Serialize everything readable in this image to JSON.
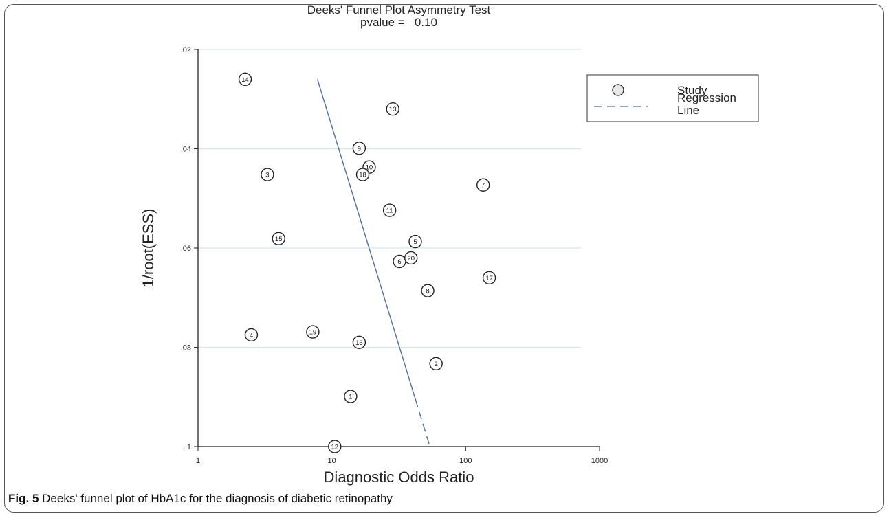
{
  "chart_data": {
    "type": "scatter",
    "title": "Deeks' Funnel Plot Asymmetry Test",
    "subtitle": "pvalue =   0.10",
    "xlabel": "Diagnostic Odds Ratio",
    "ylabel": "1/root(ESS)",
    "x_scale": "log",
    "xlim": [
      1,
      1000
    ],
    "ylim": [
      0.02,
      0.1
    ],
    "y_reversed": true,
    "x_ticks": [
      "1",
      "10",
      "100",
      "1000"
    ],
    "y_ticks": [
      ".02",
      ".04",
      ".06",
      ".08",
      ".1"
    ],
    "grid": "horizontal",
    "legend_position": "top-right",
    "legend": [
      {
        "label": "Study",
        "marker": "circle"
      },
      {
        "label": "Regression\nLine",
        "marker": "dashed-line"
      }
    ],
    "series": [
      {
        "name": "Study",
        "points": [
          {
            "label": "1",
            "x": 13.8,
            "y": 0.0899
          },
          {
            "label": "2",
            "x": 60.0,
            "y": 0.0833
          },
          {
            "label": "3",
            "x": 3.3,
            "y": 0.0452
          },
          {
            "label": "4",
            "x": 2.5,
            "y": 0.0775
          },
          {
            "label": "5",
            "x": 42.0,
            "y": 0.0587
          },
          {
            "label": "6",
            "x": 32.0,
            "y": 0.0627
          },
          {
            "label": "7",
            "x": 135.0,
            "y": 0.0473
          },
          {
            "label": "8",
            "x": 52.0,
            "y": 0.0686
          },
          {
            "label": "9",
            "x": 16.0,
            "y": 0.0399
          },
          {
            "label": "10",
            "x": 19.0,
            "y": 0.0437
          },
          {
            "label": "11",
            "x": 27.0,
            "y": 0.0524
          },
          {
            "label": "12",
            "x": 10.5,
            "y": 0.1
          },
          {
            "label": "13",
            "x": 28.5,
            "y": 0.032
          },
          {
            "label": "14",
            "x": 2.25,
            "y": 0.026
          },
          {
            "label": "15",
            "x": 4.0,
            "y": 0.0581
          },
          {
            "label": "16",
            "x": 16.0,
            "y": 0.079
          },
          {
            "label": "17",
            "x": 150.0,
            "y": 0.066
          },
          {
            "label": "18",
            "x": 17.0,
            "y": 0.0452
          },
          {
            "label": "19",
            "x": 7.2,
            "y": 0.0769
          },
          {
            "label": "20",
            "x": 39.0,
            "y": 0.062
          }
        ]
      },
      {
        "name": "Regression Line",
        "type": "line",
        "style": "dashed",
        "points": [
          {
            "x": 7.8,
            "y": 0.026
          },
          {
            "x": 54.0,
            "y": 0.1
          }
        ]
      }
    ],
    "colors": {
      "regression_line": "#4f6fa0",
      "grid": "#d5e6e6",
      "marker_fill": "#e8e8e8"
    }
  },
  "caption": {
    "fig_label": "Fig. 5",
    "text": " Deeks' funnel plot of HbA1c for the diagnosis of diabetic retinopathy"
  }
}
